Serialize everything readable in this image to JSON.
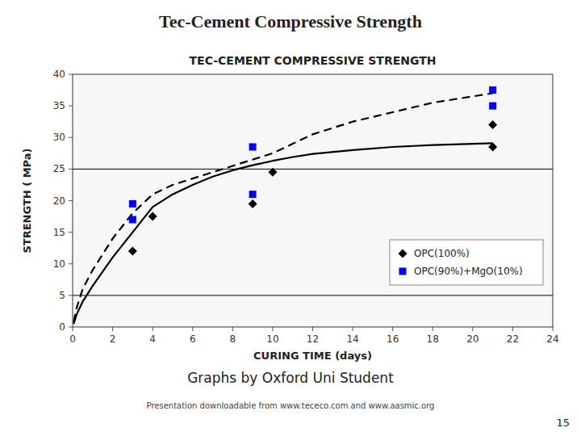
{
  "chart_data": {
    "type": "scatter",
    "title": "TEC-CEMENT COMPRESSIVE STRENGTH",
    "xlabel": "CURING TIME (days)",
    "ylabel": "STRENGTH ( MPa)",
    "annotations": [
      "Tec-Cement Compressive Strength",
      "Graphs by Oxford Uni Student",
      "Presentation downloadable from www.tececo.com  and www.aasmic.org",
      "15"
    ],
    "xlim": [
      0,
      24
    ],
    "ylim": [
      0,
      40
    ],
    "xticks": [
      0,
      2,
      4,
      6,
      8,
      10,
      12,
      14,
      16,
      18,
      20,
      22,
      24
    ],
    "yticks": [
      0,
      5,
      10,
      15,
      20,
      25,
      30,
      35,
      40
    ],
    "hlines": [
      5.0,
      25.0
    ],
    "legend": "lower right",
    "series": [
      {
        "type": "line",
        "line_style": "solid",
        "color": "black",
        "x": [
          0.05,
          0.2,
          0.5,
          1,
          2,
          3,
          4,
          5,
          6,
          7,
          8,
          9,
          10,
          11,
          12,
          14,
          16,
          18,
          20,
          21
        ],
        "values": [
          0.5,
          2,
          4,
          6.5,
          11,
          15,
          19,
          21,
          22.5,
          23.8,
          24.8,
          25.6,
          26.3,
          26.9,
          27.4,
          28.0,
          28.5,
          28.8,
          29.0,
          29.1
        ]
      },
      {
        "type": "line",
        "line_style": "dashed",
        "color": "black",
        "x": [
          0.05,
          0.2,
          0.5,
          1,
          2,
          3,
          4,
          5,
          6,
          7,
          8,
          9,
          10,
          11,
          12,
          14,
          16,
          18,
          20,
          21
        ],
        "values": [
          0.8,
          3,
          6,
          9,
          14,
          18,
          21,
          22.5,
          23.5,
          24.5,
          25.5,
          26.5,
          27.5,
          29.0,
          30.5,
          32.5,
          34.0,
          35.5,
          36.5,
          37.0
        ]
      },
      {
        "name": "OPC(100%)",
        "type": "scatter",
        "marker": "diamond",
        "color": "black",
        "x": [
          3,
          4,
          9,
          10,
          21,
          21
        ],
        "values": [
          12,
          17.5,
          19.5,
          24.5,
          32,
          28.5
        ]
      },
      {
        "name": "OPC(90%)+MgO(10%)",
        "type": "scatter",
        "marker": "square",
        "color": "blue",
        "x": [
          3,
          3,
          9,
          9,
          21,
          21
        ],
        "values": [
          19.5,
          17,
          28.5,
          21,
          37.5,
          35
        ]
      }
    ]
  }
}
